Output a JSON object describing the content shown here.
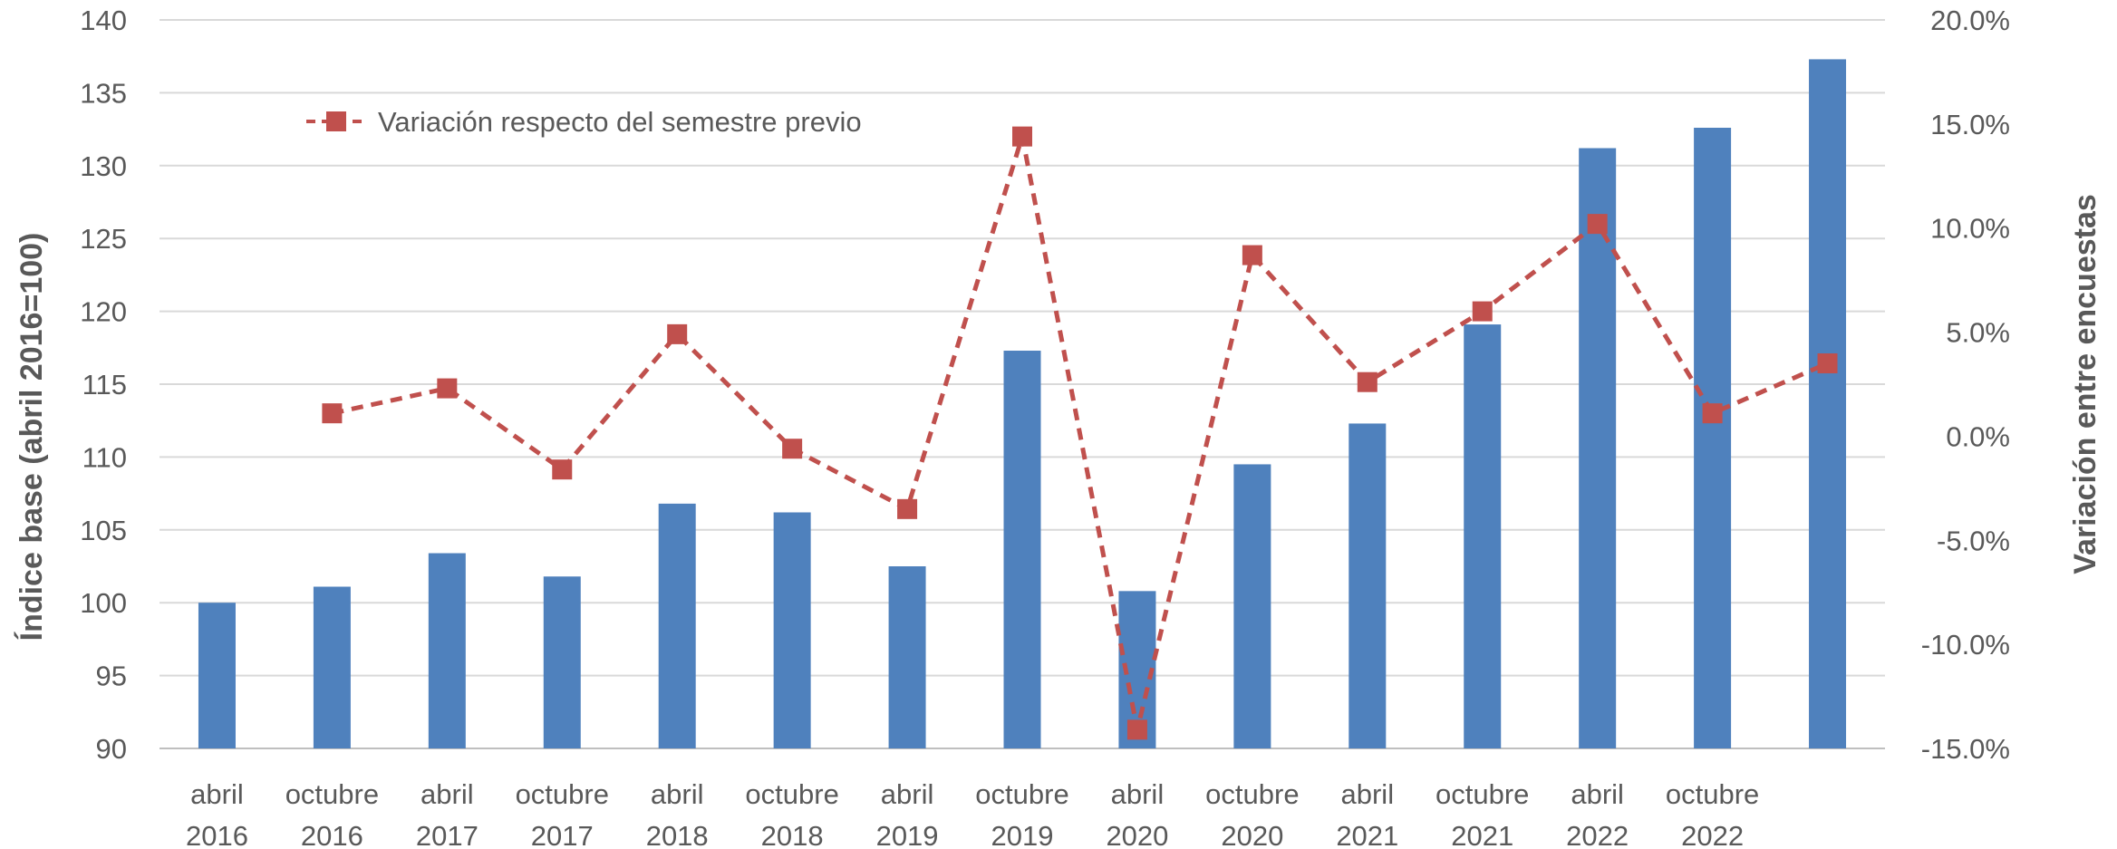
{
  "chart_data": {
    "type": "bar",
    "categories": [
      [
        "abril",
        "2016"
      ],
      [
        "octubre",
        "2016"
      ],
      [
        "abril",
        "2017"
      ],
      [
        "octubre",
        "2017"
      ],
      [
        "abril",
        "2018"
      ],
      [
        "octubre",
        "2018"
      ],
      [
        "abril",
        "2019"
      ],
      [
        "octubre",
        "2019"
      ],
      [
        "abril",
        "2020"
      ],
      [
        "octubre",
        "2020"
      ],
      [
        "abril",
        "2021"
      ],
      [
        "octubre",
        "2021"
      ],
      [
        "abril",
        "2022"
      ],
      [
        "octubre",
        "2022"
      ],
      [
        "",
        ""
      ]
    ],
    "series": [
      {
        "type": "bar",
        "axis": "left",
        "color": "#4F81BD",
        "values": [
          100.0,
          101.1,
          103.4,
          101.8,
          106.8,
          106.2,
          102.5,
          117.3,
          100.8,
          109.5,
          112.3,
          119.1,
          131.2,
          132.6,
          137.3
        ]
      },
      {
        "type": "line",
        "axis": "right",
        "name": "Variación respecto del semestre previo",
        "color": "#C0504D",
        "style": "dashed",
        "marker": "square",
        "values": [
          null,
          1.1,
          2.3,
          -1.6,
          4.9,
          -0.6,
          -3.5,
          14.4,
          -14.1,
          8.7,
          2.6,
          6.0,
          10.2,
          1.1,
          3.5
        ]
      }
    ],
    "left_axis": {
      "label": "Índice base (abril 2016=100)",
      "min": 90,
      "max": 140,
      "step": 5
    },
    "right_axis": {
      "label": "Variación entre encuestas",
      "min": -15,
      "max": 20,
      "step": 5,
      "format": "percent_1dp"
    },
    "grid": true,
    "legend": {
      "position": "top-left"
    }
  }
}
